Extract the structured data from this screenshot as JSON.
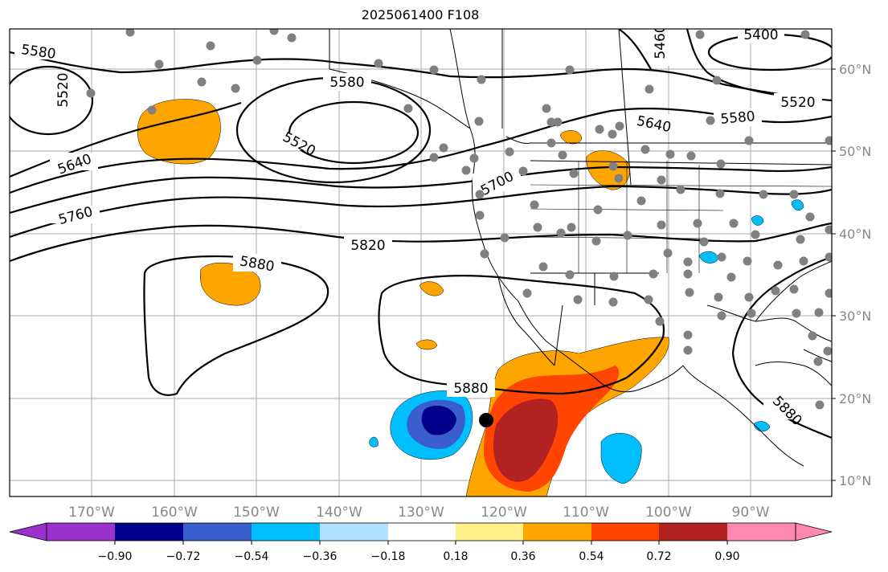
{
  "title": "2025061400 F108",
  "map": {
    "lat_labels": [
      "60°N",
      "50°N",
      "40°N",
      "30°N",
      "20°N",
      "10°N"
    ],
    "lon_labels": [
      "170°W",
      "160°W",
      "150°W",
      "140°W",
      "130°W",
      "120°W",
      "110°W",
      "100°W",
      "90°W"
    ],
    "contour_labels": [
      "5580",
      "5520",
      "5580",
      "5520",
      "5640",
      "5640",
      "5580",
      "5520",
      "5460",
      "5400",
      "5760",
      "5700",
      "5820",
      "5880",
      "5880",
      "5880"
    ],
    "colors": {
      "contour": "#000000",
      "grid": "#aaaaaa",
      "station_dot": "#808080",
      "target_dot": "#000000"
    }
  },
  "colorbar": {
    "tick_labels": [
      "−0.90",
      "−0.72",
      "−0.54",
      "−0.36",
      "−0.18",
      "0.18",
      "0.36",
      "0.54",
      "0.72",
      "0.90"
    ],
    "colors": [
      "#9932cc",
      "#00008b",
      "#3a5fcd",
      "#00bfff",
      "#b0e2ff",
      "#ffffff",
      "#fff08a",
      "#ffa500",
      "#ff4500",
      "#b22222",
      "#ff88b0"
    ]
  }
}
